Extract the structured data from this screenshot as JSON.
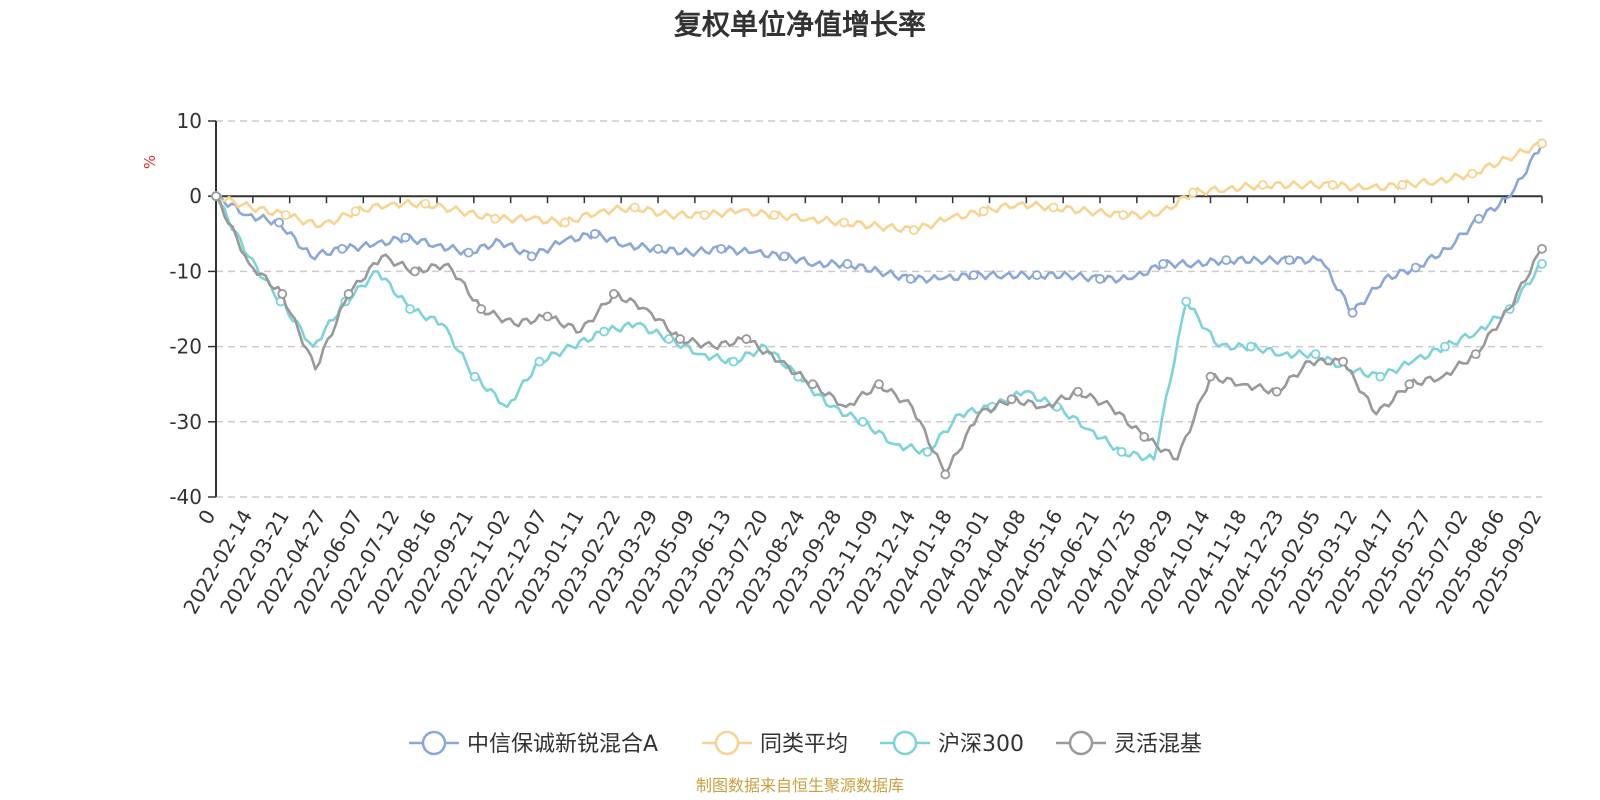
{
  "chart_data": {
    "type": "line",
    "title": "复权单位净值增长率",
    "y_unit": "%",
    "ylim": [
      -40,
      10
    ],
    "y_ticks": [
      "10",
      "0",
      "-10",
      "-20",
      "-30",
      "-40"
    ],
    "x_tick_labels": [
      "0",
      "2022-02-14",
      "2022-03-21",
      "2022-04-27",
      "2022-06-07",
      "2022-07-12",
      "2022-08-16",
      "2022-09-21",
      "2022-11-02",
      "2022-12-07",
      "2023-01-11",
      "2023-02-22",
      "2023-03-29",
      "2023-05-09",
      "2023-06-13",
      "2023-07-20",
      "2023-08-24",
      "2023-09-28",
      "2023-11-09",
      "2023-12-14",
      "2024-01-18",
      "2024-03-01",
      "2024-04-08",
      "2024-05-16",
      "2024-06-21",
      "2024-07-25",
      "2024-08-29",
      "2024-10-14",
      "2024-11-18",
      "2024-12-23",
      "2025-02-05",
      "2025-03-12",
      "2025-04-17",
      "2025-05-27",
      "2025-07-02",
      "2025-08-06",
      "2025-09-02"
    ],
    "grid": true,
    "legend_position": "bottom",
    "source_note": "制图数据来自恒生聚源数据库",
    "series": [
      {
        "name": "中信保诚新锐混合A",
        "color": "#8ba7d6",
        "values": [
          0,
          -2.5,
          -3.5,
          -8,
          -7,
          -6.5,
          -5.5,
          -6.5,
          -7.5,
          -6,
          -8,
          -6,
          -5,
          -6.5,
          -7,
          -7.5,
          -7,
          -7.5,
          -8,
          -9,
          -9,
          -10,
          -11,
          -11,
          -10.5,
          -10.5,
          -10.5,
          -10.5,
          -11,
          -11,
          -9,
          -9,
          -8.5,
          -8.5,
          -8.5,
          -8.5,
          -15.5,
          -11,
          -9.5,
          -7,
          -3,
          0,
          7
        ]
      },
      {
        "name": "同类平均",
        "color": "#f8d493",
        "values": [
          0,
          -1.5,
          -2.5,
          -4,
          -2,
          -1,
          -1,
          -2,
          -3,
          -3,
          -3.5,
          -2,
          -1.5,
          -2.5,
          -2.5,
          -2,
          -2.5,
          -3,
          -3.5,
          -4,
          -4.5,
          -3,
          -2,
          -1,
          -1.5,
          -2,
          -2.5,
          -2.5,
          0.5,
          1,
          1.5,
          1.5,
          1.5,
          1,
          1.5,
          2,
          3,
          5,
          7
        ]
      },
      {
        "name": "沪深300",
        "color": "#7dd3d8",
        "values": [
          0,
          -8,
          -14,
          -20,
          -14,
          -10,
          -15,
          -17,
          -24,
          -28,
          -22,
          -20,
          -18,
          -17,
          -19,
          -21,
          -22,
          -20,
          -24,
          -28,
          -30,
          -33,
          -34,
          -29,
          -28,
          -26,
          -28,
          -31,
          -34,
          -35,
          -14,
          -20,
          -20,
          -21,
          -21,
          -23,
          -24,
          -22,
          -20,
          -18,
          -15,
          -9
        ]
      },
      {
        "name": "灵活混基",
        "color": "#999999",
        "values": [
          0,
          -9,
          -13,
          -23,
          -13,
          -8,
          -10,
          -9,
          -15,
          -17,
          -16,
          -18,
          -13,
          -15,
          -19,
          -20,
          -19,
          -22,
          -25,
          -28,
          -25,
          -28,
          -37,
          -29,
          -27,
          -28,
          -26,
          -28,
          -32,
          -35,
          -24,
          -25,
          -26,
          -22,
          -22,
          -29,
          -25,
          -24,
          -21,
          -15,
          -7
        ]
      }
    ]
  }
}
